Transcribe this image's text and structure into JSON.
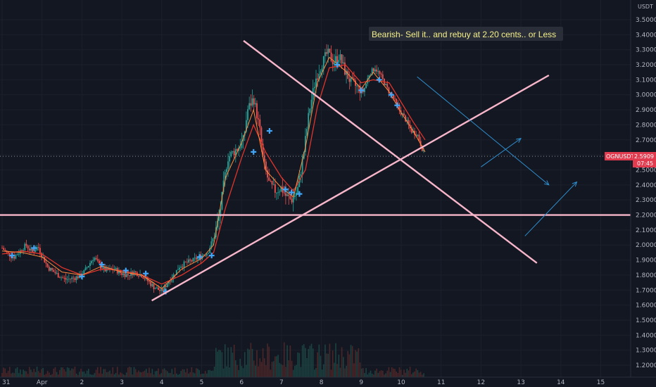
{
  "chart_data": {
    "type": "line",
    "symbol": "OGNUSDT",
    "unit": "USDT",
    "last_price": "2.5909",
    "countdown": "07:45",
    "annotation": "Bearish- Sell it.. and rebuy at 2.20 cents.. or Less",
    "ylim": [
      1.15,
      3.56
    ],
    "y_ticks": [
      "3.5000",
      "3.4000",
      "3.3000",
      "3.2000",
      "3.1000",
      "3.0000",
      "2.9000",
      "2.8000",
      "2.7000",
      "2.6000",
      "2.5000",
      "2.4000",
      "2.3000",
      "2.2000",
      "2.1000",
      "2.0000",
      "1.9000",
      "1.8000",
      "1.7000",
      "1.6000",
      "1.5000",
      "1.4000",
      "1.3000",
      "1.2000"
    ],
    "x_ticks": [
      {
        "label": "31",
        "day": 0
      },
      {
        "label": "Apr",
        "day": 1
      },
      {
        "label": "2",
        "day": 2
      },
      {
        "label": "3",
        "day": 3
      },
      {
        "label": "4",
        "day": 4
      },
      {
        "label": "5",
        "day": 5
      },
      {
        "label": "6",
        "day": 6
      },
      {
        "label": "7",
        "day": 7
      },
      {
        "label": "8",
        "day": 8
      },
      {
        "label": "9",
        "day": 9
      },
      {
        "label": "10",
        "day": 10
      },
      {
        "label": "11",
        "day": 11
      },
      {
        "label": "12",
        "day": 12
      },
      {
        "label": "13",
        "day": 13
      },
      {
        "label": "14",
        "day": 14
      },
      {
        "label": "15",
        "day": 15
      }
    ],
    "price_path": [
      [
        0.0,
        1.98
      ],
      [
        0.15,
        1.94
      ],
      [
        0.3,
        1.92
      ],
      [
        0.45,
        1.96
      ],
      [
        0.6,
        2.0
      ],
      [
        0.75,
        1.95
      ],
      [
        0.9,
        1.99
      ],
      [
        1.0,
        1.93
      ],
      [
        1.15,
        1.85
      ],
      [
        1.3,
        1.82
      ],
      [
        1.45,
        1.79
      ],
      [
        1.6,
        1.77
      ],
      [
        1.8,
        1.78
      ],
      [
        2.0,
        1.8
      ],
      [
        2.15,
        1.86
      ],
      [
        2.3,
        1.92
      ],
      [
        2.45,
        1.86
      ],
      [
        2.6,
        1.83
      ],
      [
        2.8,
        1.84
      ],
      [
        3.0,
        1.81
      ],
      [
        3.15,
        1.8
      ],
      [
        3.3,
        1.82
      ],
      [
        3.5,
        1.8
      ],
      [
        3.65,
        1.76
      ],
      [
        3.8,
        1.72
      ],
      [
        4.0,
        1.69
      ],
      [
        4.15,
        1.75
      ],
      [
        4.3,
        1.8
      ],
      [
        4.45,
        1.86
      ],
      [
        4.6,
        1.88
      ],
      [
        4.8,
        1.9
      ],
      [
        5.0,
        1.93
      ],
      [
        5.15,
        1.95
      ],
      [
        5.3,
        2.05
      ],
      [
        5.45,
        2.2
      ],
      [
        5.55,
        2.4
      ],
      [
        5.65,
        2.58
      ],
      [
        5.8,
        2.62
      ],
      [
        5.95,
        2.66
      ],
      [
        6.05,
        2.7
      ],
      [
        6.15,
        2.9
      ],
      [
        6.3,
        2.98
      ],
      [
        6.45,
        2.78
      ],
      [
        6.55,
        2.55
      ],
      [
        6.7,
        2.4
      ],
      [
        6.85,
        2.36
      ],
      [
        7.0,
        2.38
      ],
      [
        7.1,
        2.33
      ],
      [
        7.25,
        2.3
      ],
      [
        7.4,
        2.36
      ],
      [
        7.55,
        2.6
      ],
      [
        7.7,
        2.9
      ],
      [
        7.85,
        3.1
      ],
      [
        8.0,
        3.2
      ],
      [
        8.15,
        3.28
      ],
      [
        8.3,
        3.22
      ],
      [
        8.45,
        3.26
      ],
      [
        8.6,
        3.15
      ],
      [
        8.75,
        3.08
      ],
      [
        8.9,
        3.05
      ],
      [
        9.05,
        3.02
      ],
      [
        9.2,
        3.14
      ],
      [
        9.35,
        3.18
      ],
      [
        9.5,
        3.12
      ],
      [
        9.65,
        3.04
      ],
      [
        9.8,
        2.98
      ],
      [
        9.95,
        2.9
      ],
      [
        10.1,
        2.84
      ],
      [
        10.25,
        2.76
      ],
      [
        10.4,
        2.74
      ],
      [
        10.5,
        2.66
      ],
      [
        10.6,
        2.59
      ]
    ],
    "ma_fast": [
      [
        0.0,
        1.96
      ],
      [
        0.5,
        1.95
      ],
      [
        1.0,
        1.92
      ],
      [
        1.5,
        1.82
      ],
      [
        2.0,
        1.8
      ],
      [
        2.5,
        1.86
      ],
      [
        3.0,
        1.82
      ],
      [
        3.5,
        1.8
      ],
      [
        4.0,
        1.71
      ],
      [
        4.5,
        1.84
      ],
      [
        5.0,
        1.91
      ],
      [
        5.3,
        2.0
      ],
      [
        5.6,
        2.45
      ],
      [
        6.0,
        2.68
      ],
      [
        6.3,
        2.9
      ],
      [
        6.6,
        2.5
      ],
      [
        7.0,
        2.38
      ],
      [
        7.3,
        2.32
      ],
      [
        7.6,
        2.65
      ],
      [
        7.9,
        3.08
      ],
      [
        8.2,
        3.25
      ],
      [
        8.6,
        3.16
      ],
      [
        9.0,
        3.04
      ],
      [
        9.3,
        3.15
      ],
      [
        9.7,
        3.02
      ],
      [
        10.0,
        2.88
      ],
      [
        10.3,
        2.76
      ],
      [
        10.6,
        2.62
      ]
    ],
    "ma_slow": [
      [
        0.0,
        1.94
      ],
      [
        0.5,
        1.96
      ],
      [
        1.0,
        1.94
      ],
      [
        1.5,
        1.85
      ],
      [
        2.0,
        1.8
      ],
      [
        2.5,
        1.84
      ],
      [
        3.0,
        1.83
      ],
      [
        3.5,
        1.8
      ],
      [
        4.0,
        1.74
      ],
      [
        4.5,
        1.8
      ],
      [
        5.0,
        1.88
      ],
      [
        5.3,
        1.95
      ],
      [
        5.6,
        2.25
      ],
      [
        6.0,
        2.58
      ],
      [
        6.3,
        2.8
      ],
      [
        6.6,
        2.62
      ],
      [
        7.0,
        2.45
      ],
      [
        7.3,
        2.36
      ],
      [
        7.6,
        2.5
      ],
      [
        7.9,
        2.92
      ],
      [
        8.2,
        3.18
      ],
      [
        8.6,
        3.2
      ],
      [
        9.0,
        3.08
      ],
      [
        9.3,
        3.1
      ],
      [
        9.7,
        3.08
      ],
      [
        10.0,
        2.95
      ],
      [
        10.3,
        2.82
      ],
      [
        10.6,
        2.7
      ]
    ],
    "markers": [
      [
        0.25,
        1.93
      ],
      [
        0.8,
        1.98
      ],
      [
        2.0,
        1.79
      ],
      [
        2.5,
        1.87
      ],
      [
        3.1,
        1.83
      ],
      [
        3.6,
        1.81
      ],
      [
        4.1,
        1.69
      ],
      [
        4.95,
        1.92
      ],
      [
        5.25,
        1.93
      ],
      [
        6.3,
        2.62
      ],
      [
        6.7,
        2.76
      ],
      [
        7.1,
        2.37
      ],
      [
        7.25,
        2.35
      ],
      [
        7.45,
        2.34
      ],
      [
        8.4,
        3.2
      ],
      [
        9.0,
        3.03
      ],
      [
        9.45,
        3.1
      ],
      [
        9.75,
        3.0
      ],
      [
        9.9,
        2.93
      ]
    ],
    "trendlines": [
      {
        "name": "support-trendline",
        "from": [
          3.75,
          1.63
        ],
        "to": [
          13.7,
          3.13
        ]
      },
      {
        "name": "resistance-trendline",
        "from": [
          6.05,
          3.36
        ],
        "to": [
          13.4,
          1.88
        ]
      },
      {
        "name": "horizontal-level",
        "from": [
          -0.2,
          2.2
        ],
        "to": [
          15.8,
          2.2
        ]
      }
    ],
    "arrows": [
      {
        "name": "projection-arrow-down-1",
        "from": [
          10.4,
          3.12
        ],
        "to": [
          13.7,
          2.4
        ]
      },
      {
        "name": "projection-arrow-up-1",
        "from": [
          12.0,
          2.52
        ],
        "to": [
          13.0,
          2.71
        ]
      },
      {
        "name": "projection-arrow-up-2",
        "from": [
          13.1,
          2.06
        ],
        "to": [
          14.4,
          2.42
        ]
      }
    ]
  }
}
